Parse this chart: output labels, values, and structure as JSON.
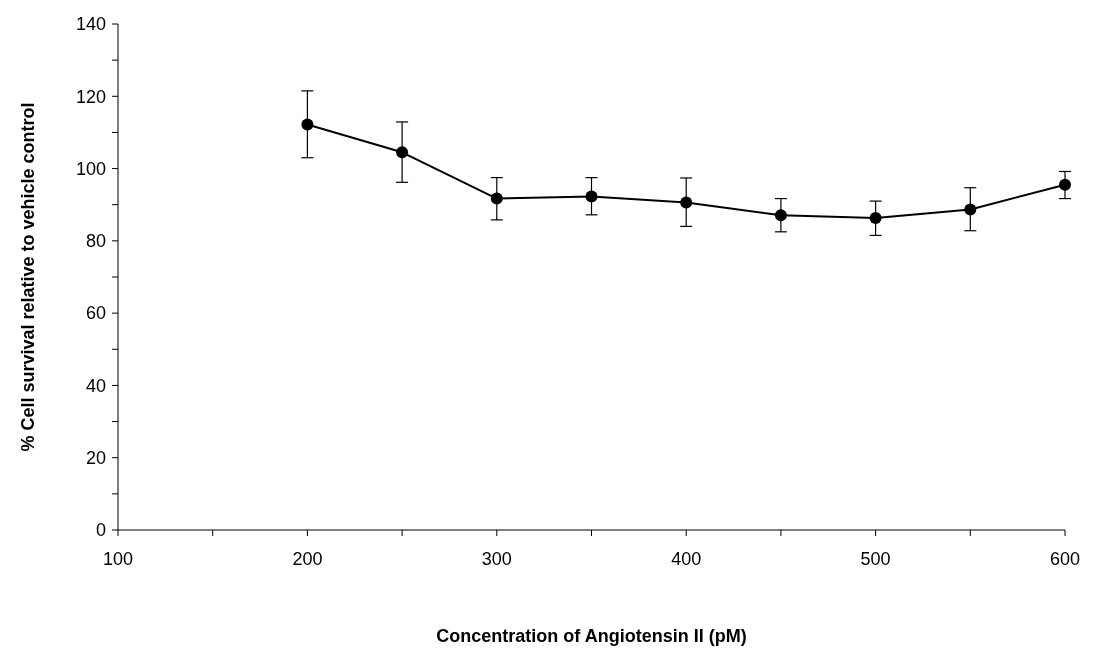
{
  "chart_data": {
    "type": "line",
    "xlabel": "Concentration of Angiotensin II (pM)",
    "ylabel": "% Cell survival relative to vehicle control",
    "x": [
      200,
      250,
      300,
      350,
      400,
      450,
      500,
      550,
      600
    ],
    "series": [
      {
        "color": "#000000",
        "values": [
          112.2,
          104.5,
          91.7,
          92.3,
          90.6,
          87.1,
          86.3,
          88.7,
          95.5
        ],
        "errors": [
          [
            103.0,
            121.5
          ],
          [
            96.2,
            112.9
          ],
          [
            85.8,
            97.5
          ],
          [
            87.2,
            97.5
          ],
          [
            84.0,
            97.4
          ],
          [
            82.5,
            91.7
          ],
          [
            81.5,
            91.0
          ],
          [
            82.8,
            94.7
          ],
          [
            91.7,
            99.2
          ]
        ]
      }
    ],
    "marker": "circle",
    "line_style": "solid",
    "grid": false,
    "xlim": [
      100,
      600
    ],
    "xticks": [
      100,
      {
        "value": 150,
        "label": null
      },
      200,
      {
        "value": 250,
        "label": null
      },
      300,
      {
        "value": 350,
        "label": null
      },
      400,
      {
        "value": 450,
        "label": null
      },
      500,
      {
        "value": 550,
        "label": null
      },
      600
    ],
    "ylim": [
      0,
      140
    ],
    "yticks": [
      0,
      {
        "value": 10,
        "label": null
      },
      20,
      {
        "value": 30,
        "label": null
      },
      40,
      {
        "value": 50,
        "label": null
      },
      60,
      {
        "value": 70,
        "label": null
      },
      80,
      {
        "value": 90,
        "label": null
      },
      100,
      {
        "value": 110,
        "label": null
      },
      120,
      {
        "value": 130,
        "label": null
      },
      140
    ]
  }
}
